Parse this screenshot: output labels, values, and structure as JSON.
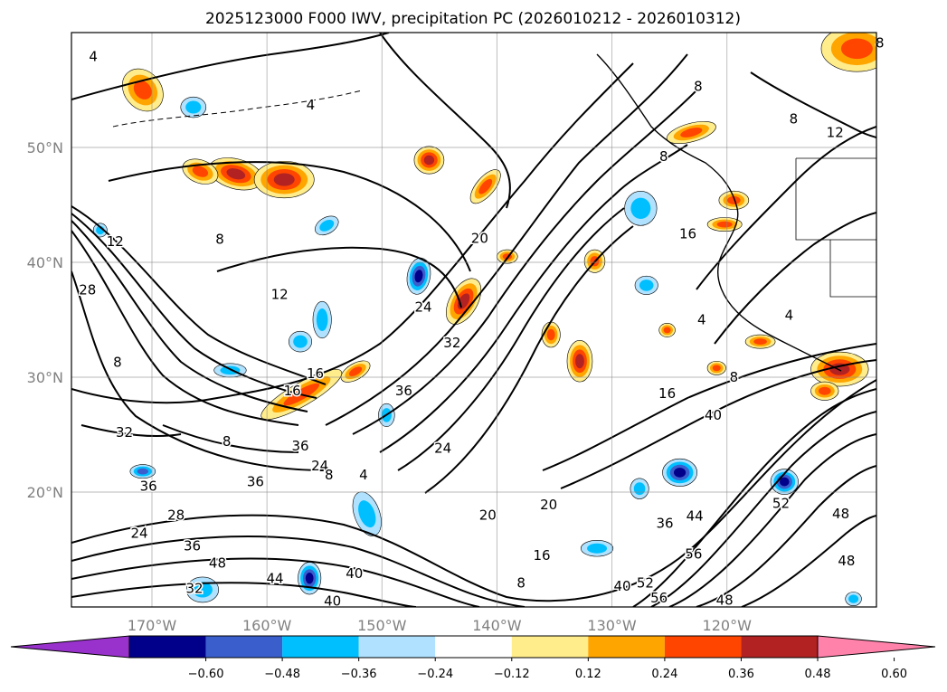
{
  "chart_data": {
    "type": "heatmap",
    "title": "2025123000 F000 IWV, precipitation PC (2026010212 - 2026010312)",
    "map": {
      "lon_range": [
        -177,
        -107
      ],
      "lat_range": [
        10,
        60
      ],
      "lon_ticks": [
        {
          "value": -170,
          "label": "170°W"
        },
        {
          "value": -160,
          "label": "160°W"
        },
        {
          "value": -150,
          "label": "150°W"
        },
        {
          "value": -140,
          "label": "140°W"
        },
        {
          "value": -130,
          "label": "130°W"
        },
        {
          "value": -120,
          "label": "120°W"
        }
      ],
      "lat_ticks": [
        {
          "value": 20,
          "label": "20°N"
        },
        {
          "value": 30,
          "label": "30°N"
        },
        {
          "value": 40,
          "label": "40°N"
        },
        {
          "value": 50,
          "label": "50°N"
        }
      ],
      "grid": true
    },
    "colorbar": {
      "boundaries": [
        -0.72,
        -0.6,
        -0.48,
        -0.36,
        -0.24,
        -0.12,
        0.12,
        0.24,
        0.36,
        0.48,
        0.6,
        0.72
      ],
      "colors": [
        "#9932cc",
        "#00008b",
        "#3a5fcd",
        "#00bfff",
        "#b0e2ff",
        "#ffffff",
        "#ffec8b",
        "#ffa500",
        "#ff4500",
        "#b22222",
        "#ff82ab"
      ],
      "tick_values": [
        -0.6,
        -0.48,
        -0.36,
        -0.24,
        -0.12,
        0.12,
        0.24,
        0.36,
        0.48,
        0.6
      ],
      "tick_labels": [
        "−0.60",
        "−0.48",
        "−0.36",
        "−0.24",
        "−0.12",
        "0.12",
        "0.24",
        "0.36",
        "0.48",
        "0.60"
      ],
      "extend": "both"
    },
    "contour_labels": [
      {
        "lon": -173.2,
        "lat": 41.8,
        "text": "12"
      },
      {
        "lon": -164.1,
        "lat": 42.0,
        "text": "8"
      },
      {
        "lon": -158.9,
        "lat": 37.2,
        "text": "12"
      },
      {
        "lon": -175.6,
        "lat": 37.6,
        "text": "28"
      },
      {
        "lon": -173.0,
        "lat": 31.3,
        "text": "8"
      },
      {
        "lon": -172.4,
        "lat": 25.2,
        "text": "32"
      },
      {
        "lon": -170.3,
        "lat": 20.5,
        "text": "36"
      },
      {
        "lon": -161.0,
        "lat": 20.9,
        "text": "36"
      },
      {
        "lon": -171.1,
        "lat": 16.4,
        "text": "24"
      },
      {
        "lon": -167.9,
        "lat": 18.0,
        "text": "28"
      },
      {
        "lon": -166.5,
        "lat": 15.3,
        "text": "36"
      },
      {
        "lon": -164.3,
        "lat": 13.8,
        "text": "48"
      },
      {
        "lon": -159.3,
        "lat": 12.5,
        "text": "44"
      },
      {
        "lon": -166.3,
        "lat": 11.6,
        "text": "32"
      },
      {
        "lon": -152.4,
        "lat": 12.9,
        "text": "40"
      },
      {
        "lon": -154.3,
        "lat": 10.5,
        "text": "40"
      },
      {
        "lon": -155.8,
        "lat": 30.3,
        "text": "16"
      },
      {
        "lon": -157.8,
        "lat": 28.8,
        "text": "16"
      },
      {
        "lon": -163.5,
        "lat": 24.4,
        "text": "8"
      },
      {
        "lon": -157.1,
        "lat": 24.0,
        "text": "36"
      },
      {
        "lon": -155.4,
        "lat": 22.3,
        "text": "24"
      },
      {
        "lon": -154.6,
        "lat": 21.5,
        "text": "8"
      },
      {
        "lon": -151.6,
        "lat": 21.5,
        "text": "4"
      },
      {
        "lon": -144.7,
        "lat": 23.8,
        "text": "24"
      },
      {
        "lon": -148.1,
        "lat": 28.8,
        "text": "36"
      },
      {
        "lon": -143.9,
        "lat": 33.0,
        "text": "32"
      },
      {
        "lon": -146.4,
        "lat": 36.1,
        "text": "24"
      },
      {
        "lon": -141.5,
        "lat": 42.1,
        "text": "20"
      },
      {
        "lon": -140.8,
        "lat": 18.0,
        "text": "20"
      },
      {
        "lon": -135.5,
        "lat": 18.9,
        "text": "20"
      },
      {
        "lon": -136.1,
        "lat": 14.5,
        "text": "16"
      },
      {
        "lon": -137.9,
        "lat": 12.1,
        "text": "8"
      },
      {
        "lon": -125.2,
        "lat": 28.6,
        "text": "16"
      },
      {
        "lon": -121.2,
        "lat": 26.7,
        "text": "40"
      },
      {
        "lon": -129.1,
        "lat": 11.8,
        "text": "40"
      },
      {
        "lon": -127.1,
        "lat": 12.1,
        "text": "52"
      },
      {
        "lon": -125.9,
        "lat": 10.8,
        "text": "56"
      },
      {
        "lon": -122.9,
        "lat": 14.6,
        "text": "56"
      },
      {
        "lon": -125.4,
        "lat": 17.3,
        "text": "36"
      },
      {
        "lon": -122.8,
        "lat": 17.9,
        "text": "44"
      },
      {
        "lon": -120.2,
        "lat": 10.6,
        "text": "48"
      },
      {
        "lon": -115.3,
        "lat": 19.0,
        "text": "52"
      },
      {
        "lon": -110.1,
        "lat": 18.1,
        "text": "48"
      },
      {
        "lon": -109.6,
        "lat": 14.0,
        "text": "48"
      },
      {
        "lon": -123.4,
        "lat": 42.5,
        "text": "16"
      },
      {
        "lon": -122.2,
        "lat": 35.0,
        "text": "4"
      },
      {
        "lon": -119.4,
        "lat": 30.0,
        "text": "8"
      },
      {
        "lon": -114.6,
        "lat": 35.4,
        "text": "4"
      },
      {
        "lon": -125.5,
        "lat": 49.2,
        "text": "8"
      },
      {
        "lon": -122.5,
        "lat": 55.3,
        "text": "8"
      },
      {
        "lon": -110.6,
        "lat": 51.3,
        "text": "12"
      },
      {
        "lon": -114.2,
        "lat": 52.5,
        "text": "8"
      },
      {
        "lon": -106.7,
        "lat": 59.1,
        "text": "8"
      },
      {
        "lon": -175.1,
        "lat": 57.9,
        "text": "4"
      },
      {
        "lon": -156.2,
        "lat": 53.7,
        "text": "4"
      }
    ],
    "precipitation_cells": [
      {
        "lon": -170.8,
        "lat": 55.0,
        "rx": 1.6,
        "ry": 2.0,
        "level": 0.42,
        "rot": -40
      },
      {
        "lon": -162.7,
        "lat": 47.7,
        "rx": 2.4,
        "ry": 1.3,
        "level": 0.55,
        "rot": 15
      },
      {
        "lon": -158.5,
        "lat": 47.2,
        "rx": 2.6,
        "ry": 1.6,
        "level": 0.5,
        "rot": 0
      },
      {
        "lon": -165.8,
        "lat": 47.9,
        "rx": 1.6,
        "ry": 1.0,
        "level": 0.4,
        "rot": 20
      },
      {
        "lon": -145.9,
        "lat": 48.9,
        "rx": 1.3,
        "ry": 1.2,
        "level": 0.52,
        "rot": 0
      },
      {
        "lon": -166.4,
        "lat": 53.5,
        "rx": 1.1,
        "ry": 0.9,
        "level": -0.34,
        "rot": 0
      },
      {
        "lon": -154.8,
        "lat": 43.2,
        "rx": 1.1,
        "ry": 0.7,
        "level": -0.3,
        "rot": -30
      },
      {
        "lon": -146.8,
        "lat": 38.8,
        "rx": 1.0,
        "ry": 1.6,
        "level": -0.55,
        "rot": 10
      },
      {
        "lon": -142.9,
        "lat": 36.6,
        "rx": 1.2,
        "ry": 2.2,
        "level": 0.58,
        "rot": 30
      },
      {
        "lon": -141.0,
        "lat": 46.6,
        "rx": 0.8,
        "ry": 1.8,
        "level": 0.38,
        "rot": 40
      },
      {
        "lon": -157.0,
        "lat": 28.5,
        "rx": 4.0,
        "ry": 1.0,
        "level": 0.46,
        "rot": -30
      },
      {
        "lon": -152.3,
        "lat": 30.5,
        "rx": 1.4,
        "ry": 0.7,
        "level": 0.4,
        "rot": -30
      },
      {
        "lon": -132.8,
        "lat": 31.4,
        "rx": 1.1,
        "ry": 1.8,
        "level": 0.56,
        "rot": 0
      },
      {
        "lon": -135.3,
        "lat": 33.7,
        "rx": 0.8,
        "ry": 1.1,
        "level": 0.4,
        "rot": 0
      },
      {
        "lon": -131.5,
        "lat": 40.1,
        "rx": 0.9,
        "ry": 1.0,
        "level": 0.38,
        "rot": 0
      },
      {
        "lon": -127.5,
        "lat": 44.7,
        "rx": 1.4,
        "ry": 1.5,
        "level": -0.3,
        "rot": 0
      },
      {
        "lon": -127.0,
        "lat": 38.0,
        "rx": 1.0,
        "ry": 0.8,
        "level": -0.28,
        "rot": 0
      },
      {
        "lon": -125.2,
        "lat": 34.1,
        "rx": 0.7,
        "ry": 0.6,
        "level": 0.38,
        "rot": 0
      },
      {
        "lon": -120.9,
        "lat": 30.8,
        "rx": 0.8,
        "ry": 0.6,
        "level": 0.38,
        "rot": 0
      },
      {
        "lon": -117.1,
        "lat": 33.1,
        "rx": 1.3,
        "ry": 0.6,
        "level": 0.38,
        "rot": 0
      },
      {
        "lon": -120.2,
        "lat": 43.3,
        "rx": 1.5,
        "ry": 0.6,
        "level": 0.38,
        "rot": 0
      },
      {
        "lon": -119.4,
        "lat": 45.4,
        "rx": 1.3,
        "ry": 0.8,
        "level": 0.42,
        "rot": 0
      },
      {
        "lon": -123.1,
        "lat": 51.3,
        "rx": 2.2,
        "ry": 0.8,
        "level": 0.38,
        "rot": -15
      },
      {
        "lon": -110.2,
        "lat": 30.7,
        "rx": 2.5,
        "ry": 1.5,
        "level": 0.52,
        "rot": 0
      },
      {
        "lon": -111.5,
        "lat": 28.8,
        "rx": 1.2,
        "ry": 0.8,
        "level": 0.4,
        "rot": 0
      },
      {
        "lon": -108.7,
        "lat": 58.6,
        "rx": 3.1,
        "ry": 2.0,
        "level": 0.4,
        "rot": 0
      },
      {
        "lon": -151.3,
        "lat": 18.1,
        "rx": 1.1,
        "ry": 2.0,
        "level": -0.32,
        "rot": -20
      },
      {
        "lon": -156.3,
        "lat": 12.5,
        "rx": 1.0,
        "ry": 1.4,
        "level": -0.55,
        "rot": 0
      },
      {
        "lon": -165.6,
        "lat": 11.5,
        "rx": 1.4,
        "ry": 1.1,
        "level": -0.3,
        "rot": 0
      },
      {
        "lon": -170.8,
        "lat": 21.8,
        "rx": 1.1,
        "ry": 0.6,
        "level": -0.4,
        "rot": 0
      },
      {
        "lon": -163.2,
        "lat": 30.6,
        "rx": 1.4,
        "ry": 0.6,
        "level": -0.3,
        "rot": 0
      },
      {
        "lon": -157.1,
        "lat": 33.1,
        "rx": 1.0,
        "ry": 0.9,
        "level": -0.32,
        "rot": 0
      },
      {
        "lon": -155.2,
        "lat": 35.0,
        "rx": 0.8,
        "ry": 1.6,
        "level": -0.3,
        "rot": 0
      },
      {
        "lon": -124.1,
        "lat": 21.7,
        "rx": 1.5,
        "ry": 1.2,
        "level": -0.55,
        "rot": 0
      },
      {
        "lon": -127.6,
        "lat": 20.3,
        "rx": 0.8,
        "ry": 0.9,
        "level": -0.3,
        "rot": 0
      },
      {
        "lon": -115.0,
        "lat": 20.9,
        "rx": 1.2,
        "ry": 1.1,
        "level": -0.5,
        "rot": 0
      },
      {
        "lon": -131.3,
        "lat": 15.1,
        "rx": 1.4,
        "ry": 0.7,
        "level": -0.3,
        "rot": 0
      },
      {
        "lon": -109.0,
        "lat": 10.7,
        "rx": 0.7,
        "ry": 0.6,
        "level": -0.3,
        "rot": 0
      },
      {
        "lon": -139.1,
        "lat": 40.5,
        "rx": 0.9,
        "ry": 0.6,
        "level": 0.38,
        "rot": 0
      },
      {
        "lon": -174.5,
        "lat": 42.8,
        "rx": 0.6,
        "ry": 0.6,
        "level": -0.3,
        "rot": 0
      },
      {
        "lon": -149.6,
        "lat": 26.7,
        "rx": 0.7,
        "ry": 1.0,
        "level": -0.3,
        "rot": 0
      }
    ]
  }
}
